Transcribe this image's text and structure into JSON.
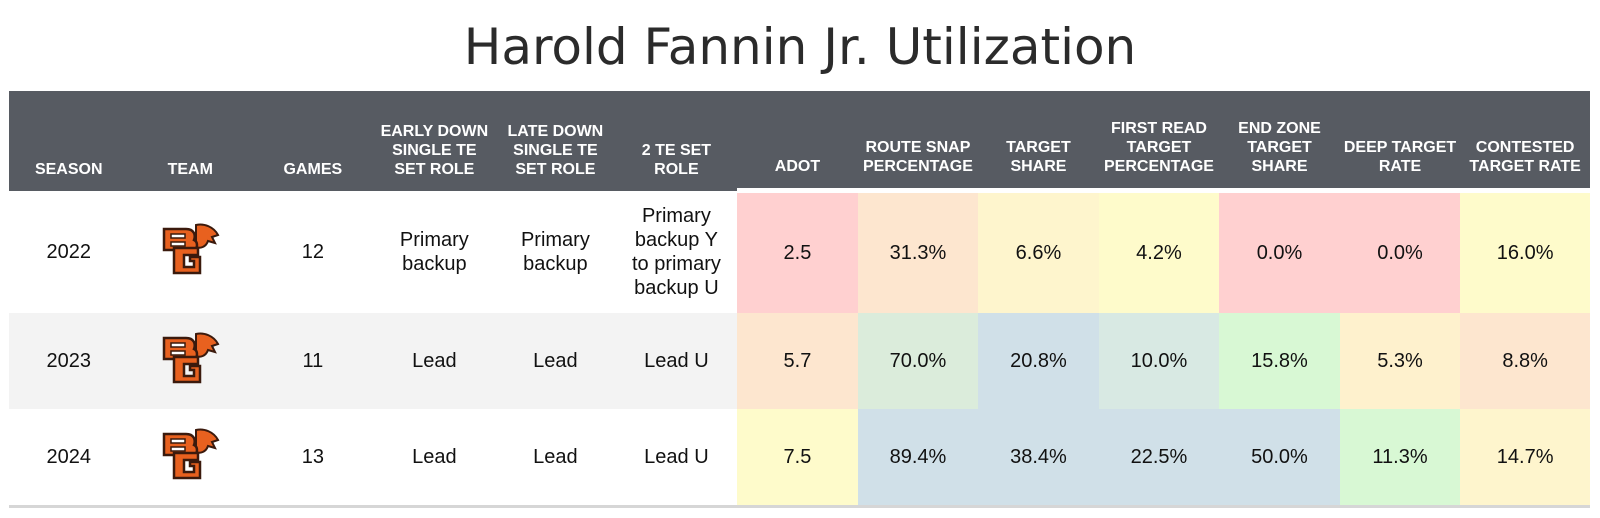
{
  "title": "Harold Fannin Jr. Utilization",
  "columns": [
    "SEASON",
    "TEAM",
    "GAMES",
    "EARLY DOWN SINGLE TE SET ROLE",
    "LATE DOWN SINGLE TE SET ROLE",
    "2 TE SET ROLE",
    "ADOT",
    "ROUTE SNAP PERCENTAGE",
    "TARGET SHARE",
    "FIRST READ TARGET PERCENTAGE",
    "END ZONE TARGET SHARE",
    "DEEP TARGET RATE",
    "CONTESTED TARGET RATE"
  ],
  "team_logo": "bowling-green-falcons-logo",
  "rows": [
    {
      "season": "2022",
      "games": "12",
      "early": "Primary backup",
      "late": "Primary backup",
      "two_te": "Primary backup Y to primary backup U",
      "stats": [
        "2.5",
        "31.3%",
        "6.6%",
        "4.2%",
        "0.0%",
        "0.0%",
        "16.0%"
      ],
      "colors": [
        "#ffd0d0",
        "#fde6cf",
        "#fef5cd",
        "#fefbcb",
        "#ffd0d0",
        "#ffd0d0",
        "#fefbcb"
      ]
    },
    {
      "season": "2023",
      "games": "11",
      "early": "Lead",
      "late": "Lead",
      "two_te": "Lead U",
      "stats": [
        "5.7",
        "70.0%",
        "20.8%",
        "10.0%",
        "15.8%",
        "5.3%",
        "8.8%"
      ],
      "colors": [
        "#fde6cf",
        "#dbecdb",
        "#d0e0e8",
        "#d8e9e3",
        "#d8f8d4",
        "#fef1cd",
        "#fde6cf"
      ]
    },
    {
      "season": "2024",
      "games": "13",
      "early": "Lead",
      "late": "Lead",
      "two_te": "Lead U",
      "stats": [
        "7.5",
        "89.4%",
        "38.4%",
        "22.5%",
        "50.0%",
        "11.3%",
        "14.7%"
      ],
      "colors": [
        "#fefbcb",
        "#d0e0e8",
        "#d0e0e8",
        "#d0e0e8",
        "#d0e0e8",
        "#d8f8d4",
        "#fef5cd"
      ]
    }
  ]
}
